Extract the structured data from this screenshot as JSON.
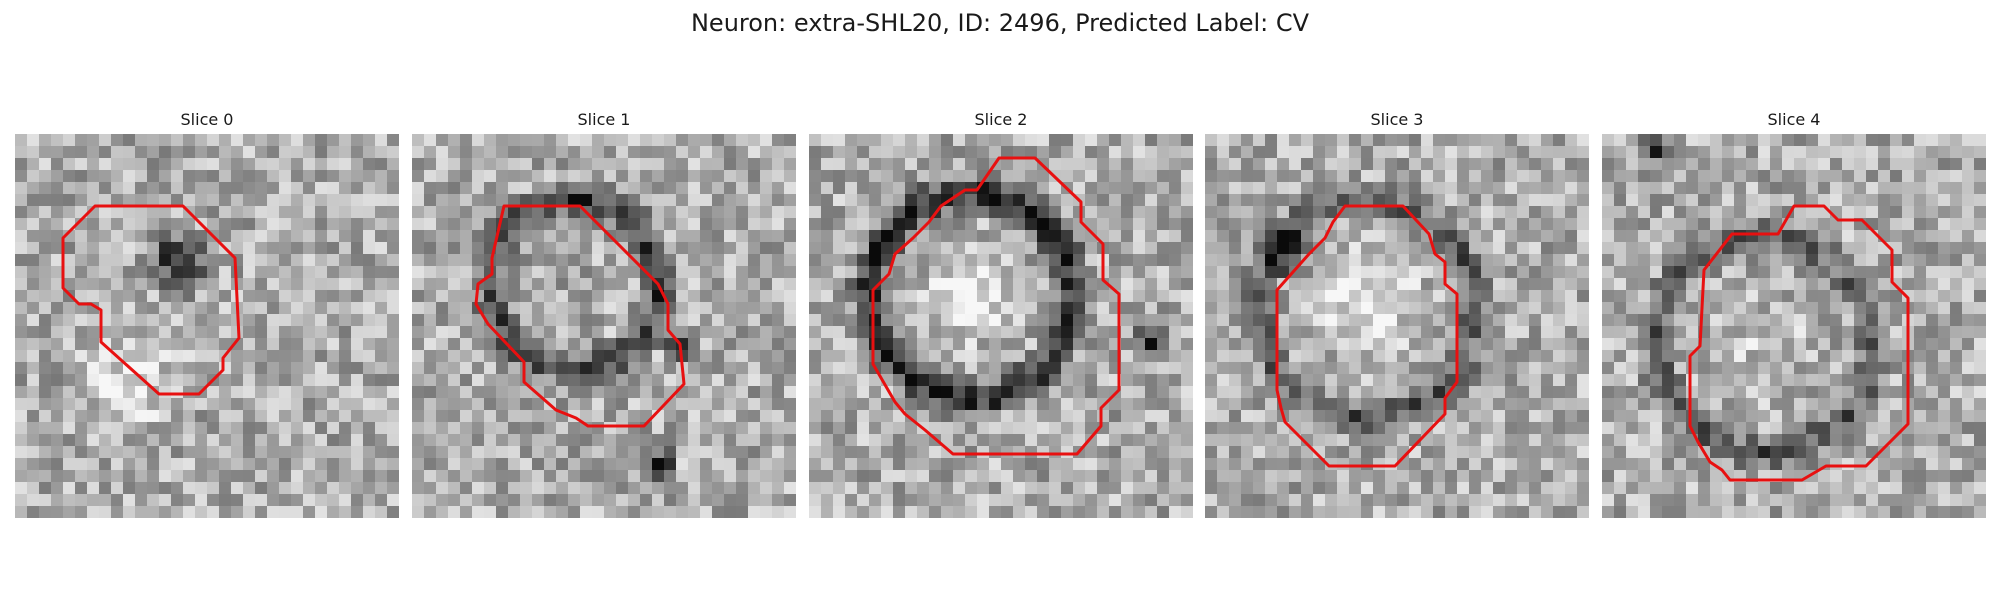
{
  "figure": {
    "title": "Neuron: extra-SHL20, ID: 2496, Predicted Label: CV"
  },
  "panels": [
    {
      "title": "Slice 0"
    },
    {
      "title": "Slice 1"
    },
    {
      "title": "Slice 2"
    },
    {
      "title": "Slice 3"
    },
    {
      "title": "Slice 4"
    }
  ],
  "colors": {
    "contour": "#e81010"
  }
}
